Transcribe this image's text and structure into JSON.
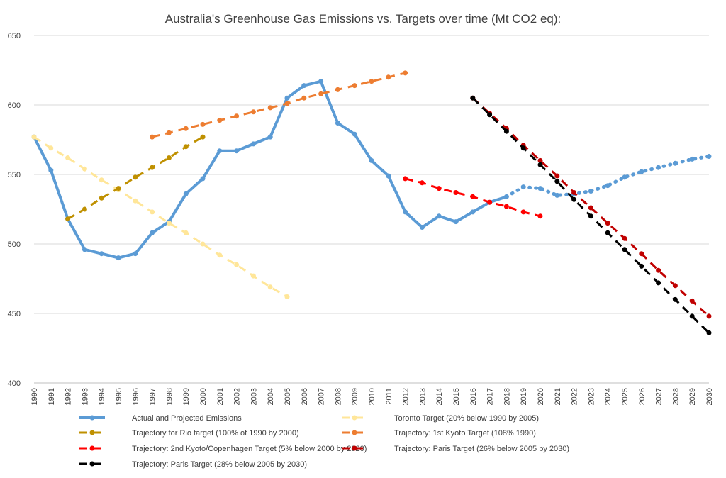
{
  "chart_data": {
    "type": "line",
    "title": "Australia's Greenhouse  Gas Emissions vs. Targets over time (Mt CO2 eq):",
    "xlabel": "",
    "ylabel": "",
    "ylim": [
      400,
      650
    ],
    "yticks": [
      400,
      450,
      500,
      550,
      600,
      650
    ],
    "grid": "horizontal",
    "legend_position": "bottom",
    "x": [
      1990,
      1991,
      1992,
      1993,
      1994,
      1995,
      1996,
      1997,
      1998,
      1999,
      2000,
      2001,
      2002,
      2003,
      2004,
      2005,
      2006,
      2007,
      2008,
      2009,
      2010,
      2011,
      2012,
      2013,
      2014,
      2015,
      2016,
      2017,
      2018,
      2019,
      2020,
      2021,
      2022,
      2023,
      2024,
      2025,
      2026,
      2027,
      2028,
      2029,
      2030
    ],
    "series": [
      {
        "name": "Actual and Projected Emissions",
        "color": "#5B9BD5",
        "style": "solid",
        "markers": [
          1990,
          2018
        ],
        "points": [
          [
            1990,
            577
          ],
          [
            1991,
            553
          ],
          [
            1992,
            518
          ],
          [
            1993,
            496
          ],
          [
            1994,
            493
          ],
          [
            1995,
            490
          ],
          [
            1996,
            493
          ],
          [
            1997,
            508
          ],
          [
            1998,
            516
          ],
          [
            1999,
            536
          ],
          [
            2000,
            547
          ],
          [
            2001,
            567
          ],
          [
            2002,
            567
          ],
          [
            2003,
            572
          ],
          [
            2004,
            577
          ],
          [
            2005,
            605
          ],
          [
            2006,
            614
          ],
          [
            2007,
            617
          ],
          [
            2008,
            587
          ],
          [
            2009,
            579
          ],
          [
            2010,
            560
          ],
          [
            2011,
            549
          ],
          [
            2012,
            523
          ],
          [
            2013,
            512
          ],
          [
            2014,
            520
          ],
          [
            2015,
            516
          ],
          [
            2016,
            523
          ],
          [
            2017,
            530
          ],
          [
            2018,
            534
          ]
        ]
      },
      {
        "name": "",
        "color": "#5B9BD5",
        "style": "dotted",
        "markers": [
          2019,
          2030
        ],
        "points": [
          [
            2018,
            534
          ],
          [
            2019,
            541
          ],
          [
            2020,
            540
          ],
          [
            2021,
            535
          ],
          [
            2022,
            536
          ],
          [
            2023,
            538
          ],
          [
            2024,
            542
          ],
          [
            2025,
            548
          ],
          [
            2026,
            552
          ],
          [
            2027,
            555
          ],
          [
            2028,
            558
          ],
          [
            2029,
            561
          ],
          [
            2030,
            563
          ]
        ]
      },
      {
        "name": "Toronto Target (20% below 1990 by 2005)",
        "color": "#FFE699",
        "style": "dashed",
        "markers": [
          1990,
          2005
        ],
        "points": [
          [
            1990,
            577
          ],
          [
            1991,
            569
          ],
          [
            1992,
            562
          ],
          [
            1993,
            554
          ],
          [
            1994,
            546
          ],
          [
            1995,
            539
          ],
          [
            1996,
            531
          ],
          [
            1997,
            523
          ],
          [
            1998,
            515
          ],
          [
            1999,
            508
          ],
          [
            2000,
            500
          ],
          [
            2001,
            492
          ],
          [
            2002,
            485
          ],
          [
            2003,
            477
          ],
          [
            2004,
            469
          ],
          [
            2005,
            462
          ]
        ]
      },
      {
        "name": "Trajectory for Rio target (100% of 1990 by 2000)",
        "color": "#BF9000",
        "style": "dashed",
        "markers": [
          1992,
          2000
        ],
        "points": [
          [
            1992,
            518
          ],
          [
            1993,
            525
          ],
          [
            1994,
            533
          ],
          [
            1995,
            540
          ],
          [
            1996,
            548
          ],
          [
            1997,
            555
          ],
          [
            1998,
            562
          ],
          [
            1999,
            570
          ],
          [
            2000,
            577
          ]
        ]
      },
      {
        "name": "Trajectory: 1st Kyoto Target (108% 1990)",
        "color": "#ED7D31",
        "style": "dashed",
        "markers": [
          1997,
          2012
        ],
        "points": [
          [
            1997,
            577
          ],
          [
            1998,
            580
          ],
          [
            1999,
            583
          ],
          [
            2000,
            586
          ],
          [
            2001,
            589
          ],
          [
            2002,
            592
          ],
          [
            2003,
            595
          ],
          [
            2004,
            598
          ],
          [
            2005,
            601
          ],
          [
            2006,
            605
          ],
          [
            2007,
            608
          ],
          [
            2008,
            611
          ],
          [
            2009,
            614
          ],
          [
            2010,
            617
          ],
          [
            2011,
            620
          ],
          [
            2012,
            623
          ]
        ]
      },
      {
        "name": "Trajectory: 2nd Kyoto/Copenhagen Target (5% below 2000 by 2020)",
        "color": "#FF0000",
        "style": "dashed",
        "markers": [
          2012,
          2020
        ],
        "points": [
          [
            2012,
            547
          ],
          [
            2013,
            544
          ],
          [
            2014,
            540
          ],
          [
            2015,
            537
          ],
          [
            2016,
            534
          ],
          [
            2017,
            530
          ],
          [
            2018,
            527
          ],
          [
            2019,
            523
          ],
          [
            2020,
            520
          ]
        ]
      },
      {
        "name": "Trajectory: Paris Target (26% below 2005 by 2030)",
        "color": "#C00000",
        "style": "dashed",
        "markers": [
          2016,
          2030
        ],
        "points": [
          [
            2016,
            605
          ],
          [
            2017,
            594
          ],
          [
            2018,
            583
          ],
          [
            2019,
            571
          ],
          [
            2020,
            560
          ],
          [
            2021,
            549
          ],
          [
            2022,
            537
          ],
          [
            2023,
            526
          ],
          [
            2024,
            515
          ],
          [
            2025,
            504
          ],
          [
            2026,
            493
          ],
          [
            2027,
            481
          ],
          [
            2028,
            470
          ],
          [
            2029,
            459
          ],
          [
            2030,
            448
          ]
        ]
      },
      {
        "name": "Trajectory: Paris Target (28% below 2005 by 2030)",
        "color": "#000000",
        "style": "dashed",
        "markers": [
          2016,
          2030
        ],
        "points": [
          [
            2016,
            605
          ],
          [
            2017,
            593
          ],
          [
            2018,
            581
          ],
          [
            2019,
            569
          ],
          [
            2020,
            557
          ],
          [
            2021,
            545
          ],
          [
            2022,
            532
          ],
          [
            2023,
            520
          ],
          [
            2024,
            508
          ],
          [
            2025,
            496
          ],
          [
            2026,
            484
          ],
          [
            2027,
            472
          ],
          [
            2028,
            460
          ],
          [
            2029,
            448
          ],
          [
            2030,
            436
          ]
        ]
      }
    ]
  }
}
